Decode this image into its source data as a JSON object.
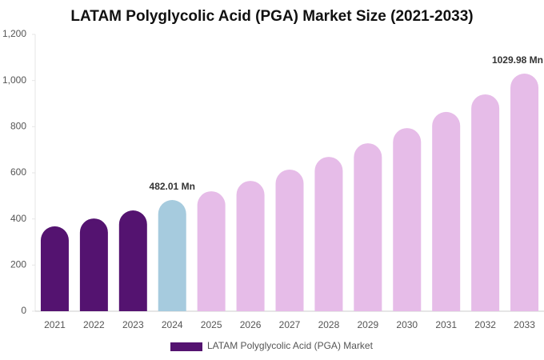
{
  "chart_data": {
    "type": "bar",
    "title": "LATAM Polyglycolic Acid (PGA) Market Size (2021-2033)",
    "categories": [
      "2021",
      "2022",
      "2023",
      "2024",
      "2025",
      "2026",
      "2027",
      "2028",
      "2029",
      "2030",
      "2031",
      "2032",
      "2033"
    ],
    "series": [
      {
        "name": "LATAM Polyglycolic Acid (PGA) Market",
        "color": "#541370",
        "values": [
          368,
          402,
          437,
          482.01,
          520,
          565,
          614,
          669,
          728,
          794,
          864,
          940,
          1029.98
        ],
        "value_labels": [
          null,
          null,
          null,
          "482.01 Mn",
          null,
          null,
          null,
          null,
          null,
          null,
          null,
          null,
          "1029.98 Mn"
        ],
        "colors": [
          "#541370",
          "#541370",
          "#541370",
          "#a6cbde",
          "#e6bce8",
          "#e6bce8",
          "#e6bce8",
          "#e6bce8",
          "#e6bce8",
          "#e6bce8",
          "#e6bce8",
          "#e6bce8",
          "#e6bce8"
        ]
      }
    ],
    "ylim": [
      0,
      1200
    ],
    "yticks": [
      0,
      200,
      400,
      600,
      800,
      {
        "value": 1000,
        "label": "1,000"
      },
      {
        "value": 1200,
        "label": "1,200"
      }
    ],
    "grid": false
  }
}
